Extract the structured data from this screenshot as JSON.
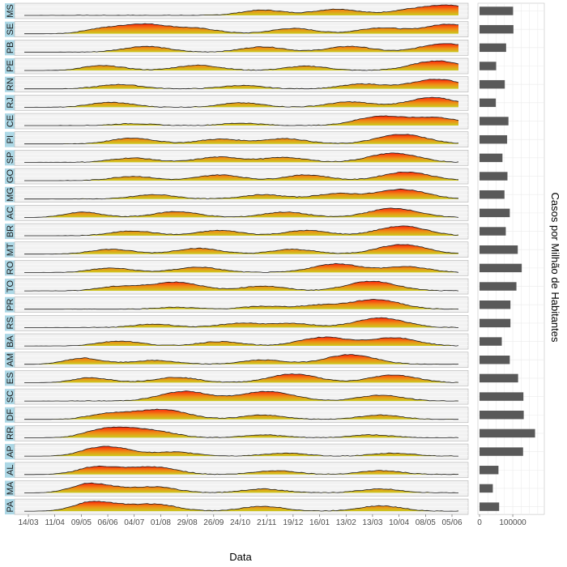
{
  "chart_data": {
    "type": "area",
    "xlabel": "Data",
    "x_ticks": [
      "14/03",
      "11/04",
      "09/05",
      "06/06",
      "04/07",
      "01/08",
      "29/08",
      "26/09",
      "24/10",
      "21/11",
      "19/12",
      "16/01",
      "13/02",
      "13/03",
      "10/04",
      "08/05",
      "05/06"
    ],
    "panels": [
      {
        "state": "MS",
        "peaks": [
          [
            0.55,
            0.55
          ],
          [
            0.72,
            0.65
          ],
          [
            0.88,
            0.45
          ],
          [
            0.98,
            1.0
          ]
        ]
      },
      {
        "state": "SE",
        "peaks": [
          [
            0.18,
            0.45
          ],
          [
            0.28,
            0.95
          ],
          [
            0.4,
            0.5
          ],
          [
            0.62,
            0.55
          ],
          [
            0.82,
            0.6
          ],
          [
            0.98,
            1.0
          ]
        ]
      },
      {
        "state": "PB",
        "peaks": [
          [
            0.28,
            0.6
          ],
          [
            0.55,
            0.55
          ],
          [
            0.75,
            0.6
          ],
          [
            0.97,
            0.9
          ]
        ]
      },
      {
        "state": "PE",
        "peaks": [
          [
            0.18,
            0.5
          ],
          [
            0.4,
            0.55
          ],
          [
            0.65,
            0.45
          ],
          [
            0.95,
            1.0
          ]
        ]
      },
      {
        "state": "RN",
        "peaks": [
          [
            0.22,
            0.45
          ],
          [
            0.5,
            0.35
          ],
          [
            0.78,
            0.5
          ],
          [
            0.95,
            1.0
          ]
        ]
      },
      {
        "state": "RJ",
        "peaks": [
          [
            0.2,
            0.5
          ],
          [
            0.5,
            0.45
          ],
          [
            0.75,
            0.55
          ],
          [
            0.94,
            1.0
          ]
        ]
      },
      {
        "state": "CE",
        "peaks": [
          [
            0.25,
            0.2
          ],
          [
            0.5,
            0.25
          ],
          [
            0.82,
            0.95
          ],
          [
            0.95,
            0.8
          ]
        ]
      },
      {
        "state": "PI",
        "peaks": [
          [
            0.25,
            0.6
          ],
          [
            0.45,
            0.5
          ],
          [
            0.6,
            0.55
          ],
          [
            0.87,
            1.0
          ]
        ]
      },
      {
        "state": "SP",
        "peaks": [
          [
            0.25,
            0.45
          ],
          [
            0.45,
            0.55
          ],
          [
            0.6,
            0.5
          ],
          [
            0.85,
            0.95
          ]
        ]
      },
      {
        "state": "GO",
        "peaks": [
          [
            0.25,
            0.45
          ],
          [
            0.45,
            0.6
          ],
          [
            0.65,
            0.6
          ],
          [
            0.88,
            0.9
          ]
        ]
      },
      {
        "state": "MG",
        "peaks": [
          [
            0.3,
            0.45
          ],
          [
            0.55,
            0.45
          ],
          [
            0.72,
            0.55
          ],
          [
            0.87,
            1.0
          ]
        ]
      },
      {
        "state": "AC",
        "peaks": [
          [
            0.12,
            0.6
          ],
          [
            0.35,
            0.6
          ],
          [
            0.6,
            0.55
          ],
          [
            0.85,
            0.95
          ]
        ]
      },
      {
        "state": "BR",
        "peaks": [
          [
            0.25,
            0.5
          ],
          [
            0.45,
            0.55
          ],
          [
            0.65,
            0.55
          ],
          [
            0.87,
            1.0
          ]
        ]
      },
      {
        "state": "MT",
        "peaks": [
          [
            0.2,
            0.5
          ],
          [
            0.4,
            0.6
          ],
          [
            0.62,
            0.5
          ],
          [
            0.87,
            1.0
          ]
        ]
      },
      {
        "state": "RO",
        "peaks": [
          [
            0.2,
            0.45
          ],
          [
            0.4,
            0.55
          ],
          [
            0.72,
            0.9
          ],
          [
            0.88,
            0.6
          ]
        ]
      },
      {
        "state": "TO",
        "peaks": [
          [
            0.22,
            0.45
          ],
          [
            0.35,
            0.9
          ],
          [
            0.55,
            0.5
          ],
          [
            0.8,
            1.0
          ]
        ]
      },
      {
        "state": "PR",
        "peaks": [
          [
            0.35,
            0.2
          ],
          [
            0.55,
            0.3
          ],
          [
            0.68,
            0.4
          ],
          [
            0.81,
            1.0
          ]
        ]
      },
      {
        "state": "RS",
        "peaks": [
          [
            0.3,
            0.35
          ],
          [
            0.5,
            0.45
          ],
          [
            0.62,
            0.4
          ],
          [
            0.82,
            1.0
          ]
        ]
      },
      {
        "state": "BA",
        "peaks": [
          [
            0.22,
            0.5
          ],
          [
            0.45,
            0.45
          ],
          [
            0.69,
            0.9
          ],
          [
            0.85,
            0.85
          ]
        ]
      },
      {
        "state": "AM",
        "peaks": [
          [
            0.12,
            0.7
          ],
          [
            0.3,
            0.4
          ],
          [
            0.55,
            0.45
          ],
          [
            0.75,
            1.0
          ]
        ]
      },
      {
        "state": "ES",
        "peaks": [
          [
            0.15,
            0.5
          ],
          [
            0.35,
            0.55
          ],
          [
            0.62,
            0.9
          ],
          [
            0.85,
            0.8
          ]
        ]
      },
      {
        "state": "SC",
        "peaks": [
          [
            0.37,
            1.0
          ],
          [
            0.52,
            0.4
          ],
          [
            0.58,
            0.75
          ],
          [
            0.82,
            0.6
          ]
        ]
      },
      {
        "state": "DF",
        "peaks": [
          [
            0.2,
            0.6
          ],
          [
            0.32,
            1.0
          ],
          [
            0.55,
            0.45
          ],
          [
            0.82,
            0.45
          ]
        ]
      },
      {
        "state": "RR",
        "peaks": [
          [
            0.2,
            1.0
          ],
          [
            0.3,
            0.6
          ],
          [
            0.55,
            0.3
          ],
          [
            0.8,
            0.3
          ]
        ]
      },
      {
        "state": "AP",
        "peaks": [
          [
            0.19,
            1.0
          ],
          [
            0.35,
            0.4
          ],
          [
            0.6,
            0.3
          ],
          [
            0.85,
            0.3
          ]
        ]
      },
      {
        "state": "AL",
        "peaks": [
          [
            0.17,
            0.8
          ],
          [
            0.3,
            0.75
          ],
          [
            0.58,
            0.4
          ],
          [
            0.82,
            0.4
          ]
        ]
      },
      {
        "state": "MA",
        "peaks": [
          [
            0.15,
            1.0
          ],
          [
            0.3,
            0.6
          ],
          [
            0.55,
            0.4
          ],
          [
            0.82,
            0.4
          ]
        ]
      },
      {
        "state": "PA",
        "peaks": [
          [
            0.16,
            1.0
          ],
          [
            0.3,
            0.7
          ],
          [
            0.55,
            0.5
          ],
          [
            0.82,
            0.55
          ]
        ]
      }
    ],
    "bar_chart": {
      "type": "bar",
      "ylabel": "Casos por Milhão de Habitantes",
      "ticks": [
        0,
        100000
      ],
      "tick_labels": [
        "0",
        "100000"
      ],
      "xlim": [
        0,
        190000
      ],
      "values": [
        {
          "state": "MS",
          "value": 101000
        },
        {
          "state": "SE",
          "value": 102000
        },
        {
          "state": "PB",
          "value": 80000
        },
        {
          "state": "PE",
          "value": 50000
        },
        {
          "state": "RN",
          "value": 76000
        },
        {
          "state": "RJ",
          "value": 49000
        },
        {
          "state": "CE",
          "value": 87000
        },
        {
          "state": "PI",
          "value": 83000
        },
        {
          "state": "SP",
          "value": 69000
        },
        {
          "state": "GO",
          "value": 84000
        },
        {
          "state": "MG",
          "value": 75000
        },
        {
          "state": "AC",
          "value": 91000
        },
        {
          "state": "BR",
          "value": 79000
        },
        {
          "state": "MT",
          "value": 115000
        },
        {
          "state": "RO",
          "value": 127000
        },
        {
          "state": "TO",
          "value": 111000
        },
        {
          "state": "PR",
          "value": 93000
        },
        {
          "state": "RS",
          "value": 93000
        },
        {
          "state": "BA",
          "value": 67000
        },
        {
          "state": "AM",
          "value": 91000
        },
        {
          "state": "ES",
          "value": 116000
        },
        {
          "state": "SC",
          "value": 132000
        },
        {
          "state": "DF",
          "value": 133000
        },
        {
          "state": "RR",
          "value": 167000
        },
        {
          "state": "AP",
          "value": 131000
        },
        {
          "state": "AL",
          "value": 57000
        },
        {
          "state": "MA",
          "value": 40000
        },
        {
          "state": "PA",
          "value": 59000
        }
      ]
    },
    "colors": {
      "low": "#c8c815",
      "mid": "#ee8a0a",
      "high": "#ff1a00",
      "strip_bg": "#add8e6",
      "panel_bg": "#f2f2f2",
      "grid": "#d9d9d9",
      "bar": "#595959"
    }
  }
}
